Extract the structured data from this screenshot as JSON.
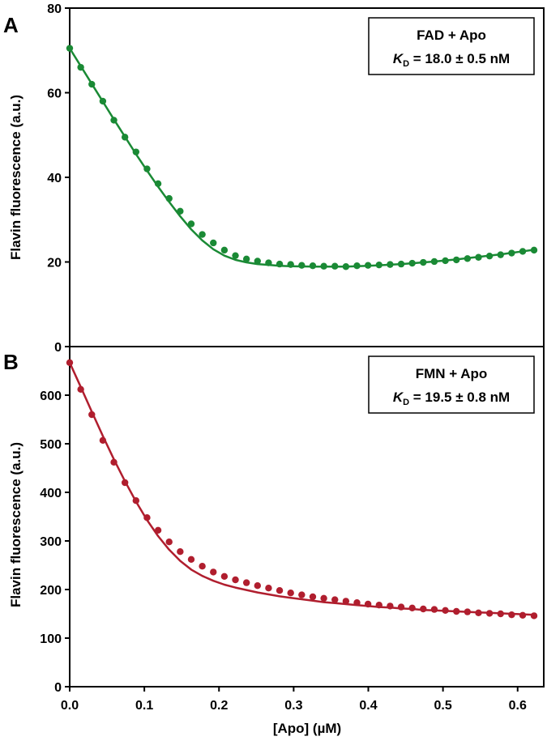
{
  "colors": {
    "panel_a": "#1a8a35",
    "panel_b": "#b01e2e",
    "axis": "#000000"
  },
  "x_axis": {
    "label": "[Apo] (µM)",
    "ticks": [
      0.0,
      0.1,
      0.2,
      0.3,
      0.4,
      0.5,
      0.6
    ],
    "tick_labels": [
      "0.0",
      "0.1",
      "0.2",
      "0.3",
      "0.4",
      "0.5",
      "0.6"
    ]
  },
  "chart_data": [
    {
      "type": "scatter",
      "panel": "A",
      "legend_line1": "FAD + Apo",
      "kd_symbol": "K",
      "kd_subscript": "D",
      "kd_value": " = 18.0 ± 0.5 nM",
      "ylabel": "Flavin fluorescence (a.u.)",
      "xlabel": "",
      "xlim": [
        0,
        0.635
      ],
      "ylim": [
        0,
        80
      ],
      "yticks": [
        0,
        20,
        40,
        60,
        80
      ],
      "series": [
        {
          "kind": "points",
          "x": [
            0.0,
            0.0148,
            0.0296,
            0.0444,
            0.0592,
            0.074,
            0.0888,
            0.1036,
            0.1184,
            0.1332,
            0.148,
            0.1628,
            0.1776,
            0.1924,
            0.2072,
            0.222,
            0.2368,
            0.2516,
            0.2664,
            0.2812,
            0.296,
            0.3108,
            0.3256,
            0.3404,
            0.3552,
            0.37,
            0.3848,
            0.3996,
            0.4144,
            0.4292,
            0.444,
            0.4588,
            0.4736,
            0.4884,
            0.5032,
            0.518,
            0.5328,
            0.5476,
            0.5624,
            0.5772,
            0.592,
            0.6068,
            0.622
          ],
          "y": [
            70.5,
            66.0,
            62.0,
            58.0,
            53.5,
            49.5,
            46.0,
            42.0,
            38.5,
            35.0,
            32.0,
            29.0,
            26.5,
            24.5,
            22.8,
            21.5,
            20.7,
            20.2,
            19.8,
            19.5,
            19.4,
            19.2,
            19.1,
            19.0,
            19.0,
            18.9,
            19.1,
            19.2,
            19.3,
            19.4,
            19.5,
            19.7,
            19.9,
            20.1,
            20.3,
            20.5,
            20.8,
            21.1,
            21.4,
            21.7,
            22.1,
            22.5,
            22.8
          ]
        },
        {
          "kind": "fit",
          "x": [
            0.0,
            0.0148,
            0.0296,
            0.0444,
            0.0592,
            0.074,
            0.0888,
            0.1036,
            0.1184,
            0.1332,
            0.148,
            0.1628,
            0.1776,
            0.1924,
            0.2072,
            0.222,
            0.2368,
            0.2516,
            0.2664,
            0.2812,
            0.296,
            0.3108,
            0.3256,
            0.3404,
            0.3552,
            0.37,
            0.3848,
            0.3996,
            0.4144,
            0.4292,
            0.444,
            0.4588,
            0.4736,
            0.4884,
            0.5032,
            0.518,
            0.5328,
            0.5476,
            0.5624,
            0.5772,
            0.592,
            0.6068,
            0.622
          ],
          "y": [
            70.5,
            66.3,
            62.1,
            57.9,
            53.7,
            49.6,
            45.5,
            41.6,
            37.8,
            34.2,
            30.8,
            27.7,
            25.1,
            23.0,
            21.5,
            20.5,
            19.9,
            19.5,
            19.3,
            19.1,
            19.0,
            18.95,
            18.9,
            18.9,
            18.9,
            18.9,
            19.0,
            19.1,
            19.2,
            19.35,
            19.5,
            19.7,
            19.9,
            20.1,
            20.35,
            20.6,
            20.9,
            21.2,
            21.5,
            21.8,
            22.15,
            22.5,
            22.9
          ]
        }
      ]
    },
    {
      "type": "scatter",
      "panel": "B",
      "legend_line1": "FMN + Apo",
      "kd_symbol": "K",
      "kd_subscript": "D",
      "kd_value": " = 19.5 ± 0.8 nM",
      "ylabel": "Flavin fluorescence (a.u.)",
      "xlabel": "[Apo] (µM)",
      "xlim": [
        0,
        0.635
      ],
      "ylim": [
        0,
        700
      ],
      "yticks": [
        0,
        100,
        200,
        300,
        400,
        500,
        600
      ],
      "series": [
        {
          "kind": "points",
          "x": [
            0.0,
            0.0148,
            0.0296,
            0.0444,
            0.0592,
            0.074,
            0.0888,
            0.1036,
            0.1184,
            0.1332,
            0.148,
            0.1628,
            0.1776,
            0.1924,
            0.2072,
            0.222,
            0.2368,
            0.2516,
            0.2664,
            0.2812,
            0.296,
            0.3108,
            0.3256,
            0.3404,
            0.3552,
            0.37,
            0.3848,
            0.3996,
            0.4144,
            0.4292,
            0.444,
            0.4588,
            0.4736,
            0.4884,
            0.5032,
            0.518,
            0.5328,
            0.5476,
            0.5624,
            0.5772,
            0.592,
            0.6068,
            0.622
          ],
          "y": [
            667,
            612,
            560,
            507,
            462,
            420,
            383,
            348,
            322,
            298,
            278,
            262,
            248,
            236,
            227,
            220,
            214,
            208,
            203,
            198,
            193,
            189,
            185,
            182,
            179,
            176,
            173,
            170,
            168,
            166,
            164,
            162,
            160,
            159,
            157,
            155,
            154,
            152,
            151,
            150,
            148,
            147,
            146
          ]
        },
        {
          "kind": "fit",
          "x": [
            0.0,
            0.0148,
            0.0296,
            0.0444,
            0.0592,
            0.074,
            0.0888,
            0.1036,
            0.1184,
            0.1332,
            0.148,
            0.1628,
            0.1776,
            0.1924,
            0.2072,
            0.222,
            0.2368,
            0.2516,
            0.2664,
            0.2812,
            0.296,
            0.3108,
            0.3256,
            0.3404,
            0.3552,
            0.37,
            0.3848,
            0.3996,
            0.4144,
            0.4292,
            0.444,
            0.4588,
            0.4736,
            0.4884,
            0.5032,
            0.518,
            0.5328,
            0.5476,
            0.5624,
            0.5772,
            0.592,
            0.6068,
            0.622
          ],
          "y": [
            667,
            617,
            566,
            516,
            468,
            423,
            381,
            343,
            310,
            282,
            259,
            241,
            228,
            218,
            210,
            204,
            199,
            194,
            190,
            186,
            183,
            180,
            177,
            174,
            172,
            170,
            168,
            166,
            164,
            163,
            161,
            160,
            158,
            157,
            156,
            155,
            154,
            153,
            152,
            151,
            150,
            149,
            148
          ]
        }
      ]
    }
  ]
}
